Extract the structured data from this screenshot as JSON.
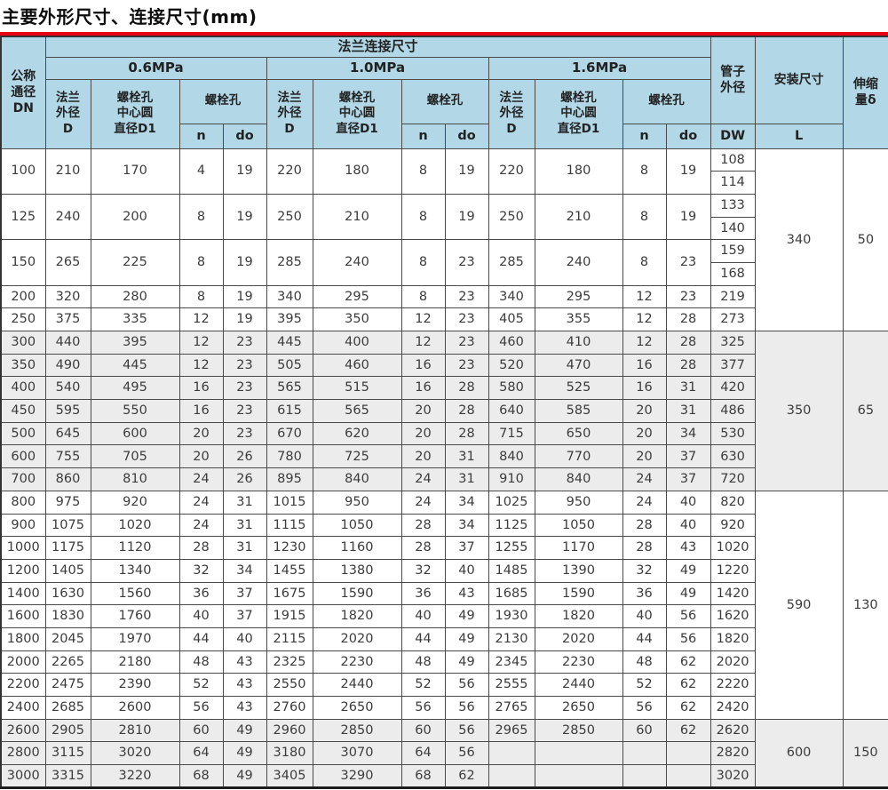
{
  "title": "主要外形尺寸、连接尺寸(mm)",
  "colors": {
    "accent_red": "#e60012",
    "header_blue": "#b2d8e8",
    "row_alt": "#ececec"
  },
  "table": {
    "header": {
      "dn": "公称\n通径\nDN",
      "flange_group": "法兰连接尺寸",
      "pressures": [
        "0.6MPa",
        "1.0MPa",
        "1.6MPa"
      ],
      "flange_od": "法兰\n外径\nD",
      "bolt_circle": "螺栓孔\n中心圆\n直径D1",
      "bolt_holes": "螺栓孔",
      "n": "n",
      "do": "do",
      "pipe_od": "管子\n外径",
      "dw": "DW",
      "install": "安装尺寸",
      "l": "L",
      "expansion": "伸缩\n量δ"
    },
    "groups": [
      {
        "L": "340",
        "delta": "50",
        "shaded": false,
        "rows": [
          {
            "dn": "100",
            "p06": [
              "210",
              "170",
              "4",
              "19"
            ],
            "p10": [
              "220",
              "180",
              "8",
              "19"
            ],
            "p16": [
              "220",
              "180",
              "8",
              "19"
            ],
            "dw": [
              "108",
              "114"
            ]
          },
          {
            "dn": "125",
            "p06": [
              "240",
              "200",
              "8",
              "19"
            ],
            "p10": [
              "250",
              "210",
              "8",
              "19"
            ],
            "p16": [
              "250",
              "210",
              "8",
              "19"
            ],
            "dw": [
              "133",
              "140"
            ]
          },
          {
            "dn": "150",
            "p06": [
              "265",
              "225",
              "8",
              "19"
            ],
            "p10": [
              "285",
              "240",
              "8",
              "23"
            ],
            "p16": [
              "285",
              "240",
              "8",
              "23"
            ],
            "dw": [
              "159",
              "168"
            ]
          },
          {
            "dn": "200",
            "p06": [
              "320",
              "280",
              "8",
              "19"
            ],
            "p10": [
              "340",
              "295",
              "8",
              "23"
            ],
            "p16": [
              "340",
              "295",
              "12",
              "23"
            ],
            "dw": [
              "219"
            ]
          },
          {
            "dn": "250",
            "p06": [
              "375",
              "335",
              "12",
              "19"
            ],
            "p10": [
              "395",
              "350",
              "12",
              "23"
            ],
            "p16": [
              "405",
              "355",
              "12",
              "28"
            ],
            "dw": [
              "273"
            ]
          }
        ]
      },
      {
        "L": "350",
        "delta": "65",
        "shaded": true,
        "rows": [
          {
            "dn": "300",
            "p06": [
              "440",
              "395",
              "12",
              "23"
            ],
            "p10": [
              "445",
              "400",
              "12",
              "23"
            ],
            "p16": [
              "460",
              "410",
              "12",
              "28"
            ],
            "dw": [
              "325"
            ]
          },
          {
            "dn": "350",
            "p06": [
              "490",
              "445",
              "12",
              "23"
            ],
            "p10": [
              "505",
              "460",
              "16",
              "23"
            ],
            "p16": [
              "520",
              "470",
              "16",
              "28"
            ],
            "dw": [
              "377"
            ]
          },
          {
            "dn": "400",
            "p06": [
              "540",
              "495",
              "16",
              "23"
            ],
            "p10": [
              "565",
              "515",
              "16",
              "28"
            ],
            "p16": [
              "580",
              "525",
              "16",
              "31"
            ],
            "dw": [
              "420"
            ]
          },
          {
            "dn": "450",
            "p06": [
              "595",
              "550",
              "16",
              "23"
            ],
            "p10": [
              "615",
              "565",
              "20",
              "28"
            ],
            "p16": [
              "640",
              "585",
              "20",
              "31"
            ],
            "dw": [
              "486"
            ]
          },
          {
            "dn": "500",
            "p06": [
              "645",
              "600",
              "20",
              "23"
            ],
            "p10": [
              "670",
              "620",
              "20",
              "28"
            ],
            "p16": [
              "715",
              "650",
              "20",
              "34"
            ],
            "dw": [
              "530"
            ]
          },
          {
            "dn": "600",
            "p06": [
              "755",
              "705",
              "20",
              "26"
            ],
            "p10": [
              "780",
              "725",
              "20",
              "31"
            ],
            "p16": [
              "840",
              "770",
              "20",
              "37"
            ],
            "dw": [
              "630"
            ]
          },
          {
            "dn": "700",
            "p06": [
              "860",
              "810",
              "24",
              "26"
            ],
            "p10": [
              "895",
              "840",
              "24",
              "31"
            ],
            "p16": [
              "910",
              "840",
              "24",
              "37"
            ],
            "dw": [
              "720"
            ]
          }
        ]
      },
      {
        "L": "590",
        "delta": "130",
        "shaded": false,
        "rows": [
          {
            "dn": "800",
            "p06": [
              "975",
              "920",
              "24",
              "31"
            ],
            "p10": [
              "1015",
              "950",
              "24",
              "34"
            ],
            "p16": [
              "1025",
              "950",
              "24",
              "40"
            ],
            "dw": [
              "820"
            ]
          },
          {
            "dn": "900",
            "p06": [
              "1075",
              "1020",
              "24",
              "31"
            ],
            "p10": [
              "1115",
              "1050",
              "28",
              "34"
            ],
            "p16": [
              "1125",
              "1050",
              "28",
              "40"
            ],
            "dw": [
              "920"
            ]
          },
          {
            "dn": "1000",
            "p06": [
              "1175",
              "1120",
              "28",
              "31"
            ],
            "p10": [
              "1230",
              "1160",
              "28",
              "37"
            ],
            "p16": [
              "1255",
              "1170",
              "28",
              "43"
            ],
            "dw": [
              "1020"
            ]
          },
          {
            "dn": "1200",
            "p06": [
              "1405",
              "1340",
              "32",
              "34"
            ],
            "p10": [
              "1455",
              "1380",
              "32",
              "40"
            ],
            "p16": [
              "1485",
              "1390",
              "32",
              "49"
            ],
            "dw": [
              "1220"
            ]
          },
          {
            "dn": "1400",
            "p06": [
              "1630",
              "1560",
              "36",
              "37"
            ],
            "p10": [
              "1675",
              "1590",
              "36",
              "43"
            ],
            "p16": [
              "1685",
              "1590",
              "36",
              "49"
            ],
            "dw": [
              "1420"
            ]
          },
          {
            "dn": "1600",
            "p06": [
              "1830",
              "1760",
              "40",
              "37"
            ],
            "p10": [
              "1915",
              "1820",
              "40",
              "49"
            ],
            "p16": [
              "1930",
              "1820",
              "40",
              "56"
            ],
            "dw": [
              "1620"
            ]
          },
          {
            "dn": "1800",
            "p06": [
              "2045",
              "1970",
              "44",
              "40"
            ],
            "p10": [
              "2115",
              "2020",
              "44",
              "49"
            ],
            "p16": [
              "2130",
              "2020",
              "44",
              "56"
            ],
            "dw": [
              "1820"
            ]
          },
          {
            "dn": "2000",
            "p06": [
              "2265",
              "2180",
              "48",
              "43"
            ],
            "p10": [
              "2325",
              "2230",
              "48",
              "49"
            ],
            "p16": [
              "2345",
              "2230",
              "48",
              "62"
            ],
            "dw": [
              "2020"
            ]
          },
          {
            "dn": "2200",
            "p06": [
              "2475",
              "2390",
              "52",
              "43"
            ],
            "p10": [
              "2550",
              "2440",
              "52",
              "56"
            ],
            "p16": [
              "2555",
              "2440",
              "52",
              "62"
            ],
            "dw": [
              "2220"
            ]
          },
          {
            "dn": "2400",
            "p06": [
              "2685",
              "2600",
              "56",
              "43"
            ],
            "p10": [
              "2760",
              "2650",
              "56",
              "56"
            ],
            "p16": [
              "2765",
              "2650",
              "56",
              "62"
            ],
            "dw": [
              "2420"
            ]
          }
        ]
      },
      {
        "L": "600",
        "delta": "150",
        "shaded": true,
        "rows": [
          {
            "dn": "2600",
            "p06": [
              "2905",
              "2810",
              "60",
              "49"
            ],
            "p10": [
              "2960",
              "2850",
              "60",
              "56"
            ],
            "p16": [
              "2965",
              "2850",
              "60",
              "62"
            ],
            "dw": [
              "2620"
            ]
          },
          {
            "dn": "2800",
            "p06": [
              "3115",
              "3020",
              "64",
              "49"
            ],
            "p10": [
              "3180",
              "3070",
              "64",
              "56"
            ],
            "p16": [
              "",
              "",
              "",
              ""
            ],
            "dw": [
              "2820"
            ]
          },
          {
            "dn": "3000",
            "p06": [
              "3315",
              "3220",
              "68",
              "49"
            ],
            "p10": [
              "3405",
              "3290",
              "68",
              "62"
            ],
            "p16": [
              "",
              "",
              "",
              ""
            ],
            "dw": [
              "3020"
            ]
          }
        ]
      }
    ]
  }
}
